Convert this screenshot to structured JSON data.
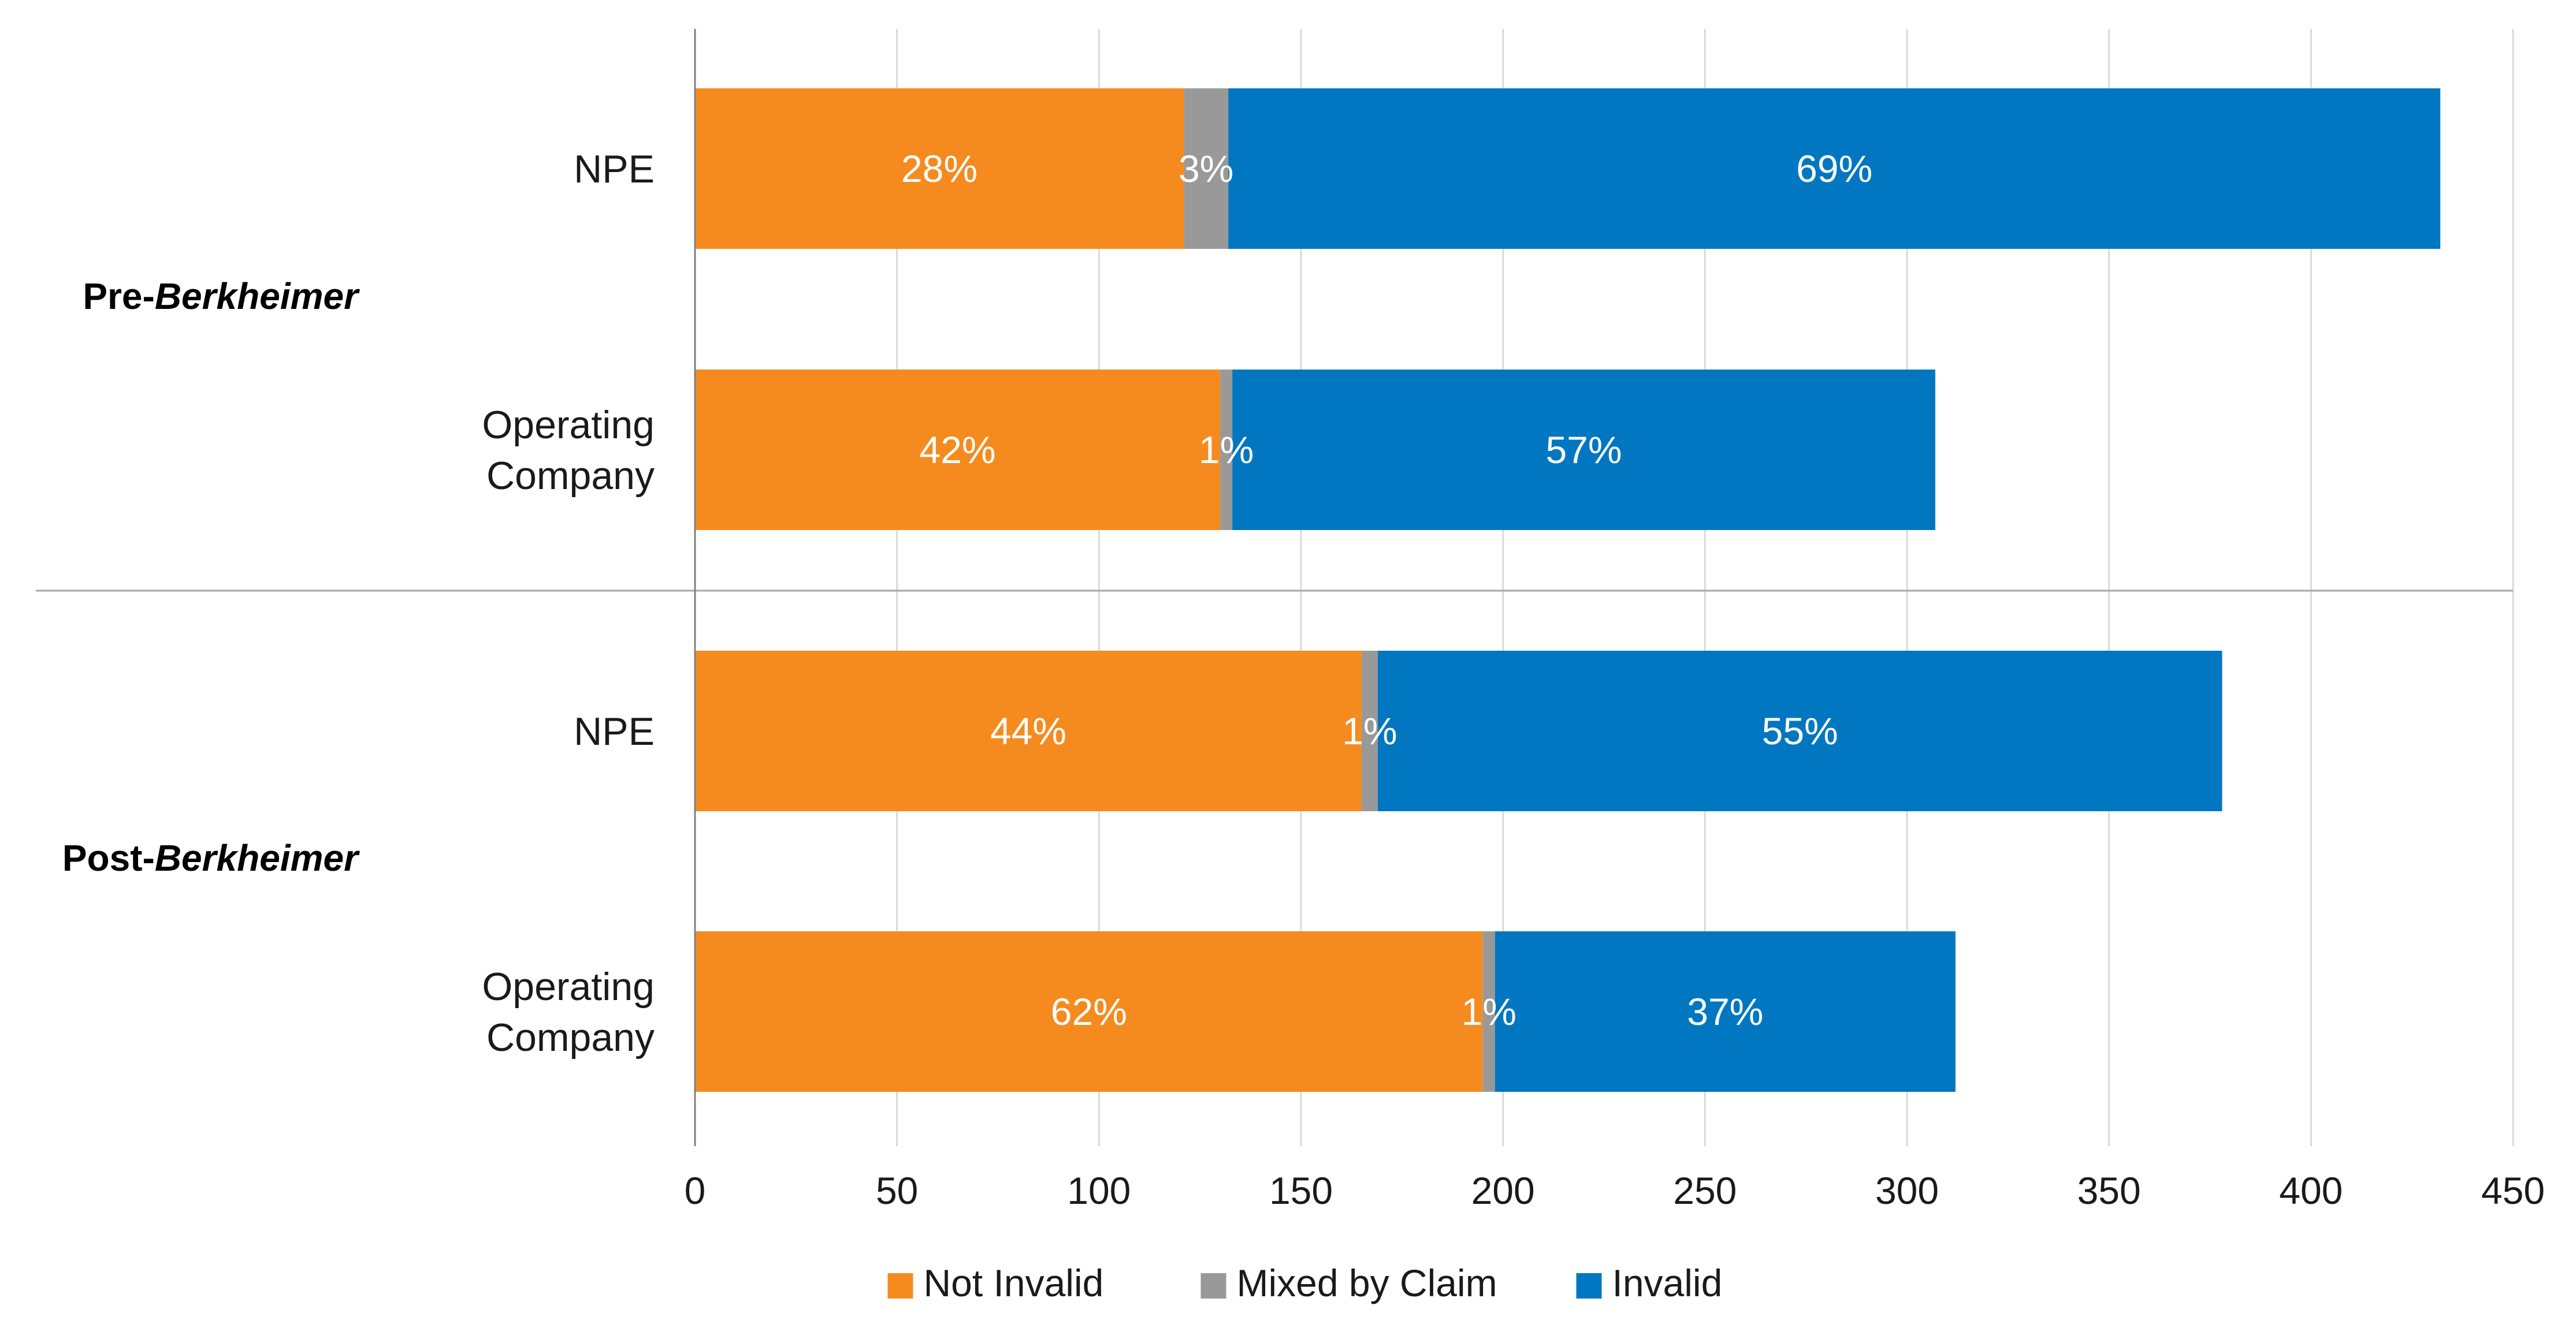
{
  "chart_data": {
    "type": "bar",
    "orientation": "horizontal",
    "stacked": true,
    "title": "",
    "xlabel": "",
    "ylabel": "",
    "xlim": [
      0,
      450
    ],
    "xticks": [
      "0",
      "50",
      "100",
      "150",
      "200",
      "250",
      "300",
      "350",
      "400",
      "450"
    ],
    "grid": true,
    "legend_position": "bottom",
    "groups": [
      {
        "label_prefix": "Pre-",
        "label_italic": "Berkheimer"
      },
      {
        "label_prefix": "Post-",
        "label_italic": "Berkheimer"
      }
    ],
    "categories": [
      {
        "group": 0,
        "lines": [
          "NPE"
        ]
      },
      {
        "group": 0,
        "lines": [
          "Operating",
          "Company"
        ]
      },
      {
        "group": 1,
        "lines": [
          "NPE"
        ]
      },
      {
        "group": 1,
        "lines": [
          "Operating",
          "Company"
        ]
      }
    ],
    "series": [
      {
        "name": "Not Invalid",
        "color": "#F58B1F",
        "values": [
          121,
          130,
          165,
          195
        ],
        "labels": [
          "28%",
          "42%",
          "44%",
          "62%"
        ]
      },
      {
        "name": "Mixed by Claim",
        "color": "#999999",
        "values": [
          11,
          3,
          4,
          3
        ],
        "labels": [
          "3%",
          "1%",
          "1%",
          "1%"
        ]
      },
      {
        "name": "Invalid",
        "color": "#0077C0",
        "values": [
          300,
          174,
          209,
          114
        ],
        "labels": [
          "69%",
          "57%",
          "55%",
          "37%"
        ]
      }
    ]
  }
}
